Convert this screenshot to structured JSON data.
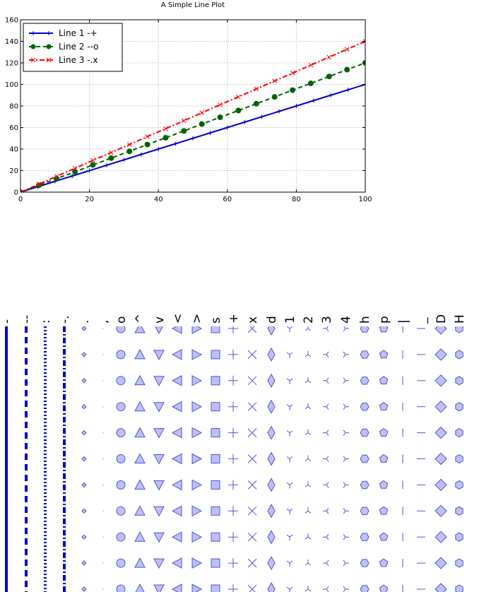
{
  "chart_data": [
    {
      "type": "line",
      "title": "A Simple Line Plot",
      "xlabel": "",
      "ylabel": "",
      "xlim": [
        0,
        100
      ],
      "ylim": [
        0,
        160
      ],
      "x_ticks": [
        0,
        20,
        40,
        60,
        80,
        100
      ],
      "y_ticks": [
        0,
        20,
        40,
        60,
        80,
        100,
        120,
        140,
        160
      ],
      "grid": true,
      "legend_position": "upper-left",
      "series": [
        {
          "name": "Line 1 -+",
          "linestyle": "-",
          "marker": "+",
          "color": "#0000cc",
          "x": [
            0,
            5,
            10,
            15,
            20,
            25,
            30,
            35,
            40,
            45,
            50,
            55,
            60,
            65,
            70,
            75,
            80,
            85,
            90,
            95,
            100
          ],
          "y": [
            0,
            5,
            10,
            15,
            20,
            25,
            30,
            35,
            40,
            45,
            50,
            55,
            60,
            65,
            70,
            75,
            80,
            85,
            90,
            95,
            100
          ]
        },
        {
          "name": "Line 2 --o",
          "linestyle": "--",
          "marker": "o",
          "color": "#006400",
          "x": [
            0,
            5.3,
            10.5,
            15.8,
            21,
            26.3,
            31.6,
            36.8,
            42.1,
            47.4,
            52.6,
            57.9,
            63.2,
            68.4,
            73.7,
            78.9,
            84.2,
            89.5,
            94.7,
            100
          ],
          "y": [
            0,
            6.3,
            12.6,
            18.9,
            25.3,
            31.6,
            37.9,
            44.2,
            50.5,
            56.8,
            63.2,
            69.5,
            75.8,
            82.1,
            88.4,
            94.7,
            101,
            107.4,
            113.7,
            120
          ]
        },
        {
          "name": "Line 3 -.x",
          "linestyle": "-.",
          "marker": "x",
          "color": "#ff0000",
          "x": [
            0,
            5.3,
            10.5,
            15.8,
            21,
            26.3,
            31.6,
            36.8,
            42.1,
            47.4,
            52.6,
            57.9,
            63.2,
            68.4,
            73.7,
            78.9,
            84.2,
            89.5,
            94.7,
            100
          ],
          "y": [
            0,
            7.4,
            14.7,
            22.1,
            29.5,
            36.8,
            44.2,
            51.6,
            58.9,
            66.3,
            73.7,
            81.1,
            88.4,
            95.8,
            103.2,
            110.5,
            117.9,
            125.3,
            132.6,
            140
          ]
        }
      ]
    },
    {
      "type": "scatter",
      "title": "",
      "columns": [
        "-",
        "--",
        ":",
        "-.",
        ".",
        ",",
        "o",
        "^",
        "v",
        "<",
        ">",
        "s",
        "+",
        "x",
        "d",
        "1",
        "2",
        "3",
        "4",
        "h",
        "p",
        "|",
        "_",
        "D",
        "H"
      ],
      "column_kinds": [
        "line",
        "line",
        "line",
        "line",
        "marker",
        "marker",
        "marker",
        "marker",
        "marker",
        "marker",
        "marker",
        "marker",
        "marker",
        "marker",
        "marker",
        "marker",
        "marker",
        "marker",
        "marker",
        "marker",
        "marker",
        "marker",
        "marker",
        "marker",
        "marker"
      ],
      "rows": 11,
      "line_color": "#0000cc",
      "marker_face_color": "#c0c0f0",
      "marker_edge_color": "#5050e0"
    }
  ]
}
